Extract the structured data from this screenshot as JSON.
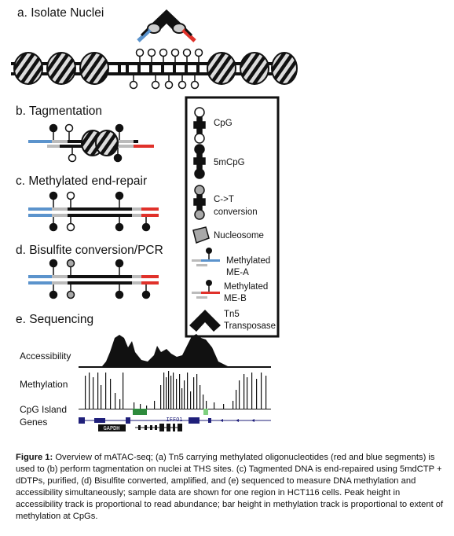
{
  "panels": {
    "a": "a. Isolate Nuclei",
    "b": "b. Tagmentation",
    "c": "c. Methylated end-repair",
    "d": "d. Bisulfite conversion/PCR",
    "e": "e. Sequencing"
  },
  "legend": {
    "cpg": "CpG",
    "mcpg": "5mCpG",
    "ct_line1": "C->T",
    "ct_line2": "conversion",
    "nucleosome": "Nucleosome",
    "mea_line1": "Methylated",
    "mea_line2": "ME-A",
    "meb_line1": "Methylated",
    "meb_line2": "ME-B",
    "tn5_line1": "Tn5",
    "tn5_line2": "Transposase"
  },
  "tracks": {
    "accessibility": "Accessibility",
    "methylation": "Methylation",
    "cpg_island": "CpG Island",
    "genes": "Genes"
  },
  "gene_labels": {
    "gapdh": "GAPDH",
    "iffo1": "IFFO1"
  },
  "caption": {
    "label": "Figure 1:",
    "text": " Overview of mATAC-seq; (a) Tn5 carrying methylated oligonucleotides (red and blue segments) is used to (b) perform tagmentation on nuclei at THS sites.  (c) Tagmented DNA is end-repaired using 5mdCTP + dDTPs, purified, (d) Bisulfite converted, amplified, and (e) sequenced to measure DNA methylation and accessibility simultaneously; sample data are shown for one region in HCT116 cells.  Peak height in accessibility track is proportional to read abundance; bar height in methylation track is proportional to extent of methylation at CpGs."
  },
  "colors": {
    "blue": "#5b93cc",
    "red": "#e0312a",
    "gray": "#a9a9a9",
    "island": "#2e8b3d",
    "island_light": "#7fd07f",
    "gene": "#1f1f7a"
  }
}
